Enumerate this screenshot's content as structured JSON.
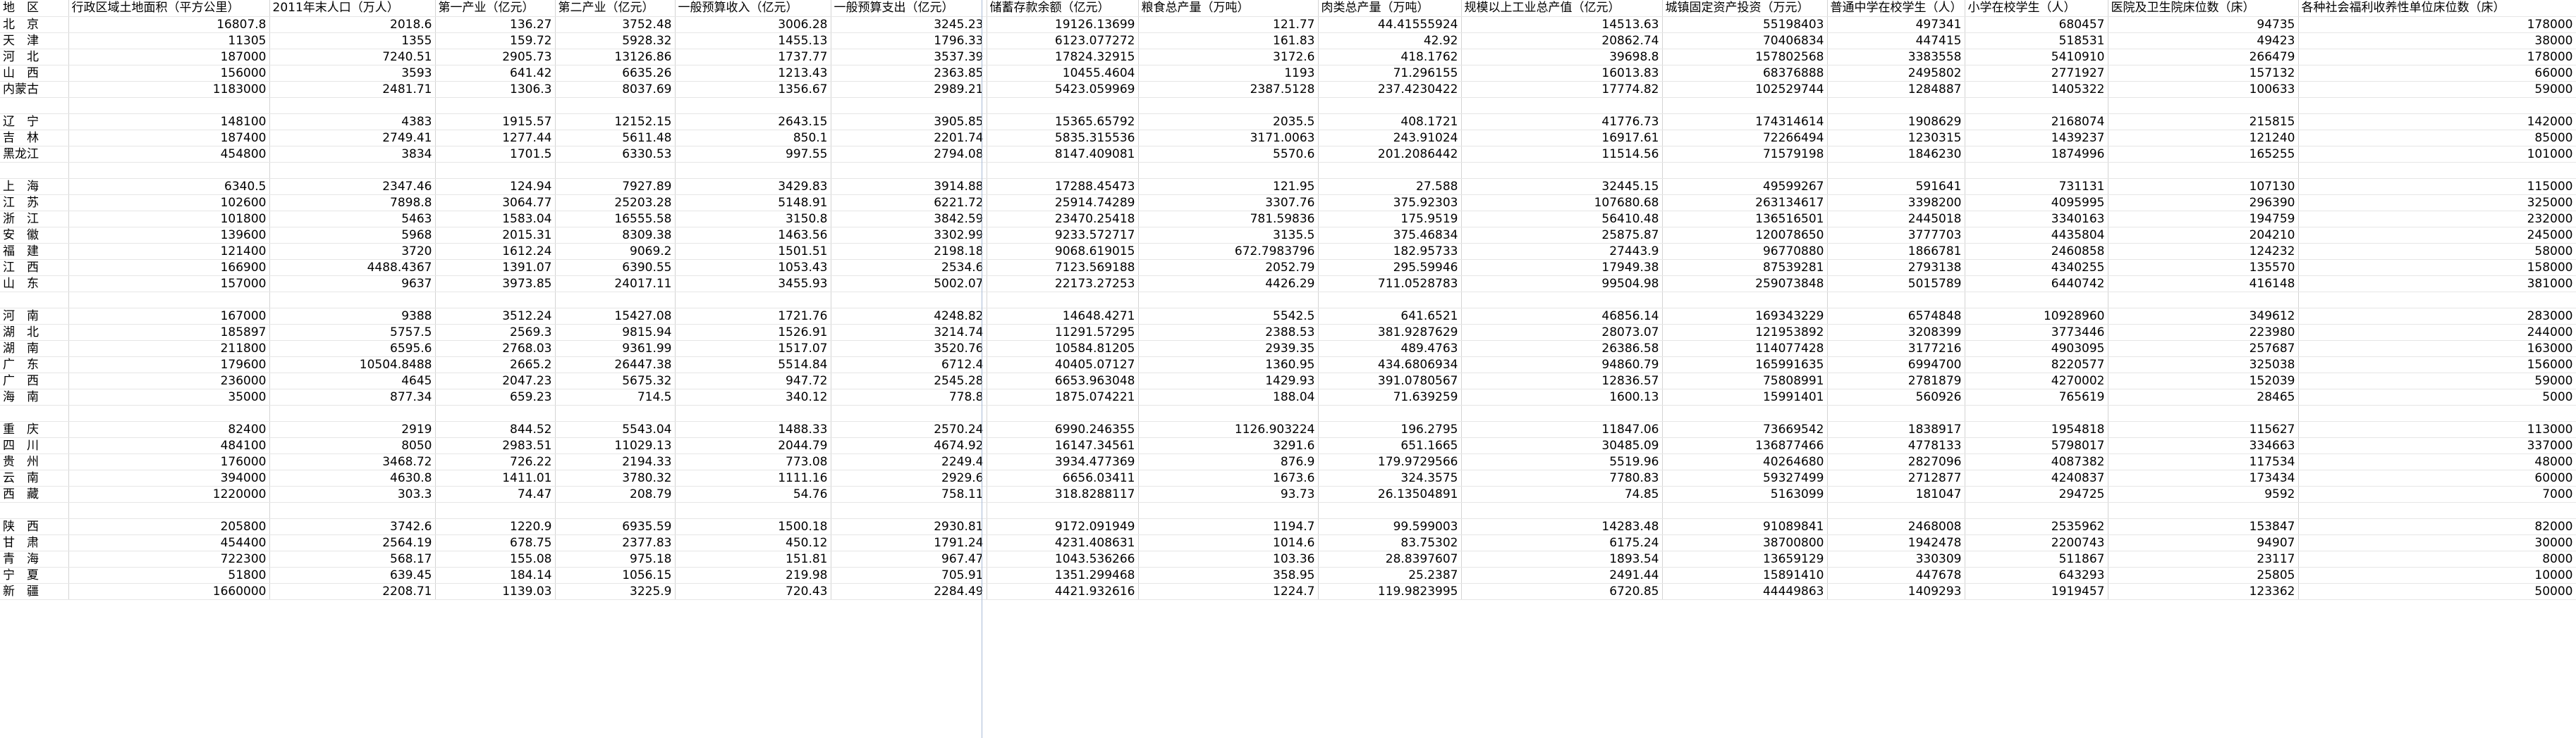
{
  "columns": [
    "地　区",
    "行政区域土地面积（平方公里）",
    "2011年末人口（万人）",
    "第一产业（亿元）",
    "第二产业（亿元）",
    "一般预算收入（亿元）",
    "一般预算支出（亿元）",
    "储蓄存款余额（亿元）",
    "粮食总产量（万吨）",
    "肉类总产量（万吨）",
    "规模以上工业总产值（亿元）",
    "城镇固定资产投资（万元）",
    "普通中学在校学生（人）",
    "小学在校学生（人）",
    "医院及卫生院床位数（床）",
    "各种社会福利收养性单位床位数（床）"
  ],
  "groups": [
    [
      [
        "北　京",
        "16807.8",
        "2018.6",
        "136.27",
        "3752.48",
        "3006.28",
        "3245.23",
        "19126.13699",
        "121.77",
        "44.41555924",
        "14513.63",
        "55198403",
        "497341",
        "680457",
        "94735",
        "178000"
      ],
      [
        "天　津",
        "11305",
        "1355",
        "159.72",
        "5928.32",
        "1455.13",
        "1796.33",
        "6123.077272",
        "161.83",
        "42.92",
        "20862.74",
        "70406834",
        "447415",
        "518531",
        "49423",
        "38000"
      ],
      [
        "河　北",
        "187000",
        "7240.51",
        "2905.73",
        "13126.86",
        "1737.77",
        "3537.39",
        "17824.32915",
        "3172.6",
        "418.1762",
        "39698.8",
        "157802568",
        "3383558",
        "5410910",
        "266479",
        "178000"
      ],
      [
        "山　西",
        "156000",
        "3593",
        "641.42",
        "6635.26",
        "1213.43",
        "2363.85",
        "10455.4604",
        "1193",
        "71.296155",
        "16013.83",
        "68376888",
        "2495802",
        "2771927",
        "157132",
        "66000"
      ],
      [
        "内蒙古",
        "1183000",
        "2481.71",
        "1306.3",
        "8037.69",
        "1356.67",
        "2989.21",
        "5423.059969",
        "2387.5128",
        "237.4230422",
        "17774.82",
        "102529744",
        "1284887",
        "1405322",
        "100633",
        "59000"
      ]
    ],
    [
      [
        "辽　宁",
        "148100",
        "4383",
        "1915.57",
        "12152.15",
        "2643.15",
        "3905.85",
        "15365.65792",
        "2035.5",
        "408.1721",
        "41776.73",
        "174314614",
        "1908629",
        "2168074",
        "215815",
        "142000"
      ],
      [
        "吉　林",
        "187400",
        "2749.41",
        "1277.44",
        "5611.48",
        "850.1",
        "2201.74",
        "5835.315536",
        "3171.0063",
        "243.91024",
        "16917.61",
        "72266494",
        "1230315",
        "1439237",
        "121240",
        "85000"
      ],
      [
        "黑龙江",
        "454800",
        "3834",
        "1701.5",
        "6330.53",
        "997.55",
        "2794.08",
        "8147.409081",
        "5570.6",
        "201.2086442",
        "11514.56",
        "71579198",
        "1846230",
        "1874996",
        "165255",
        "101000"
      ]
    ],
    [
      [
        "上　海",
        "6340.5",
        "2347.46",
        "124.94",
        "7927.89",
        "3429.83",
        "3914.88",
        "17288.45473",
        "121.95",
        "27.588",
        "32445.15",
        "49599267",
        "591641",
        "731131",
        "107130",
        "115000"
      ],
      [
        "江　苏",
        "102600",
        "7898.8",
        "3064.77",
        "25203.28",
        "5148.91",
        "6221.72",
        "25914.74289",
        "3307.76",
        "375.92303",
        "107680.68",
        "263134617",
        "3398200",
        "4095995",
        "296390",
        "325000"
      ],
      [
        "浙　江",
        "101800",
        "5463",
        "1583.04",
        "16555.58",
        "3150.8",
        "3842.59",
        "23470.25418",
        "781.59836",
        "175.9519",
        "56410.48",
        "136516501",
        "2445018",
        "3340163",
        "194759",
        "232000"
      ],
      [
        "安　徽",
        "139600",
        "5968",
        "2015.31",
        "8309.38",
        "1463.56",
        "3302.99",
        "9233.572717",
        "3135.5",
        "375.46834",
        "25875.87",
        "120078650",
        "3777703",
        "4435804",
        "204210",
        "245000"
      ],
      [
        "福　建",
        "121400",
        "3720",
        "1612.24",
        "9069.2",
        "1501.51",
        "2198.18",
        "9068.619015",
        "672.7983796",
        "182.95733",
        "27443.9",
        "96770880",
        "1866781",
        "2460858",
        "124232",
        "58000"
      ],
      [
        "江　西",
        "166900",
        "4488.4367",
        "1391.07",
        "6390.55",
        "1053.43",
        "2534.6",
        "7123.569188",
        "2052.79",
        "295.59946",
        "17949.38",
        "87539281",
        "2793138",
        "4340255",
        "135570",
        "158000"
      ],
      [
        "山　东",
        "157000",
        "9637",
        "3973.85",
        "24017.11",
        "3455.93",
        "5002.07",
        "22173.27253",
        "4426.29",
        "711.0528783",
        "99504.98",
        "259073848",
        "5015789",
        "6440742",
        "416148",
        "381000"
      ]
    ],
    [
      [
        "河　南",
        "167000",
        "9388",
        "3512.24",
        "15427.08",
        "1721.76",
        "4248.82",
        "14648.4271",
        "5542.5",
        "641.6521",
        "46856.14",
        "169343229",
        "6574848",
        "10928960",
        "349612",
        "283000"
      ],
      [
        "湖　北",
        "185897",
        "5757.5",
        "2569.3",
        "9815.94",
        "1526.91",
        "3214.74",
        "11291.57295",
        "2388.53",
        "381.9287629",
        "28073.07",
        "121953892",
        "3208399",
        "3773446",
        "223980",
        "244000"
      ],
      [
        "湖　南",
        "211800",
        "6595.6",
        "2768.03",
        "9361.99",
        "1517.07",
        "3520.76",
        "10584.81205",
        "2939.35",
        "489.4763",
        "26386.58",
        "114077428",
        "3177216",
        "4903095",
        "257687",
        "163000"
      ],
      [
        "广　东",
        "179600",
        "10504.8488",
        "2665.2",
        "26447.38",
        "5514.84",
        "6712.4",
        "40405.07127",
        "1360.95",
        "434.6806934",
        "94860.79",
        "165991635",
        "6994700",
        "8220577",
        "325038",
        "156000"
      ],
      [
        "广　西",
        "236000",
        "4645",
        "2047.23",
        "5675.32",
        "947.72",
        "2545.28",
        "6653.963048",
        "1429.93",
        "391.0780567",
        "12836.57",
        "75808991",
        "2781879",
        "4270002",
        "152039",
        "59000"
      ],
      [
        "海　南",
        "35000",
        "877.34",
        "659.23",
        "714.5",
        "340.12",
        "778.8",
        "1875.074221",
        "188.04",
        "71.639259",
        "1600.13",
        "15991401",
        "560926",
        "765619",
        "28465",
        "5000"
      ]
    ],
    [
      [
        "重　庆",
        "82400",
        "2919",
        "844.52",
        "5543.04",
        "1488.33",
        "2570.24",
        "6990.246355",
        "1126.903224",
        "196.2795",
        "11847.06",
        "73669542",
        "1838917",
        "1954818",
        "115627",
        "113000"
      ],
      [
        "四　川",
        "484100",
        "8050",
        "2983.51",
        "11029.13",
        "2044.79",
        "4674.92",
        "16147.34561",
        "3291.6",
        "651.1665",
        "30485.09",
        "136877466",
        "4778133",
        "5798017",
        "334663",
        "337000"
      ],
      [
        "贵　州",
        "176000",
        "3468.72",
        "726.22",
        "2194.33",
        "773.08",
        "2249.4",
        "3934.477369",
        "876.9",
        "179.9729566",
        "5519.96",
        "40264680",
        "2827096",
        "4087382",
        "117534",
        "48000"
      ],
      [
        "云　南",
        "394000",
        "4630.8",
        "1411.01",
        "3780.32",
        "1111.16",
        "2929.6",
        "6656.03411",
        "1673.6",
        "324.3575",
        "7780.83",
        "59327499",
        "2712877",
        "4240837",
        "173434",
        "60000"
      ],
      [
        "西　藏",
        "1220000",
        "303.3",
        "74.47",
        "208.79",
        "54.76",
        "758.11",
        "318.8288117",
        "93.73",
        "26.13504891",
        "74.85",
        "5163099",
        "181047",
        "294725",
        "9592",
        "7000"
      ]
    ],
    [
      [
        "陕　西",
        "205800",
        "3742.6",
        "1220.9",
        "6935.59",
        "1500.18",
        "2930.81",
        "9172.091949",
        "1194.7",
        "99.599003",
        "14283.48",
        "91089841",
        "2468008",
        "2535962",
        "153847",
        "82000"
      ],
      [
        "甘　肃",
        "454400",
        "2564.19",
        "678.75",
        "2377.83",
        "450.12",
        "1791.24",
        "4231.408631",
        "1014.6",
        "83.75302",
        "6175.24",
        "38700800",
        "1942478",
        "2200743",
        "94907",
        "30000"
      ],
      [
        "青　海",
        "722300",
        "568.17",
        "155.08",
        "975.18",
        "151.81",
        "967.47",
        "1043.536266",
        "103.36",
        "28.8397607",
        "1893.54",
        "13659129",
        "330309",
        "511867",
        "23117",
        "8000"
      ],
      [
        "宁　夏",
        "51800",
        "639.45",
        "184.14",
        "1056.15",
        "219.98",
        "705.91",
        "1351.299468",
        "358.95",
        "25.2387",
        "2491.44",
        "15891410",
        "447678",
        "643293",
        "25805",
        "10000"
      ],
      [
        "新　疆",
        "1660000",
        "2208.71",
        "1139.03",
        "3225.9",
        "720.43",
        "2284.49",
        "4421.932616",
        "1224.7",
        "119.9823995",
        "6720.85",
        "44449863",
        "1409293",
        "1919457",
        "123362",
        "50000"
      ]
    ]
  ]
}
